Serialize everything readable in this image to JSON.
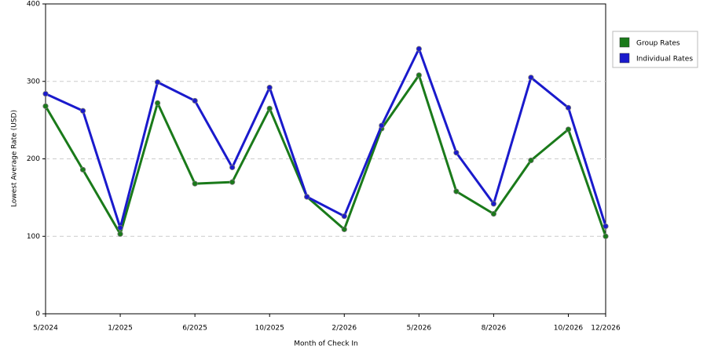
{
  "chart_data": {
    "type": "line",
    "xlabel": "Month of Check In",
    "ylabel": "Lowest Average Rate (USD)",
    "categories": [
      "5/2024",
      null,
      "1/2025",
      null,
      "6/2025",
      null,
      "10/2025",
      null,
      "2/2026",
      null,
      "5/2026",
      null,
      "8/2026",
      null,
      "10/2026",
      "12/2026"
    ],
    "series": [
      {
        "name": "Group Rates",
        "color": "#1a7a1a",
        "values": [
          268,
          186,
          103,
          272,
          168,
          170,
          265,
          151,
          109,
          239,
          308,
          158,
          129,
          198,
          238,
          100
        ]
      },
      {
        "name": "Individual Rates",
        "color": "#1a1acc",
        "values": [
          284,
          262,
          111,
          299,
          275,
          189,
          292,
          151,
          126,
          243,
          342,
          208,
          142,
          305,
          266,
          113
        ]
      }
    ],
    "ylim": [
      0,
      400
    ],
    "yticks": [
      0,
      100,
      200,
      300,
      400
    ],
    "grid": true,
    "legend": "right"
  }
}
